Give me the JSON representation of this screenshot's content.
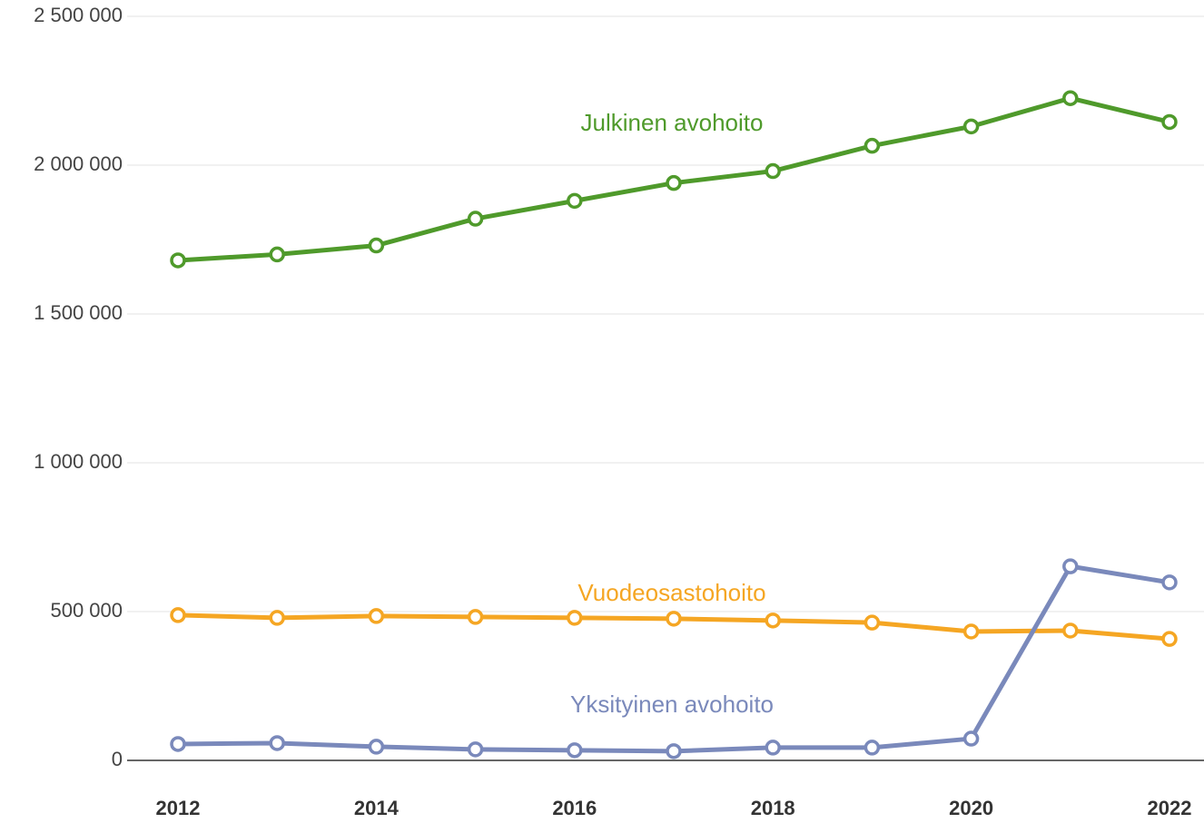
{
  "chart_data": {
    "type": "line",
    "x": [
      2012,
      2013,
      2014,
      2015,
      2016,
      2017,
      2018,
      2019,
      2020,
      2021,
      2022
    ],
    "xlim": [
      2012,
      2022
    ],
    "xticks": [
      2012,
      2014,
      2016,
      2018,
      2020,
      2022
    ],
    "ylim": [
      0,
      2500000
    ],
    "yticks": [
      0,
      {
        "value": 500000,
        "label": "500 000"
      },
      {
        "value": 1000000,
        "label": "1 000 000"
      },
      {
        "value": 1500000,
        "label": "1 500 000"
      },
      {
        "value": 2000000,
        "label": "2 000 000"
      },
      {
        "value": 2500000,
        "label": "2 500 000"
      }
    ],
    "grid": true,
    "series": [
      {
        "name": "Julkinen avohoito",
        "color": "#4f9a2b",
        "values": [
          1680000,
          1700000,
          1730000,
          1820000,
          1880000,
          1940000,
          1980000,
          2065000,
          2130000,
          2225000,
          2145000
        ]
      },
      {
        "name": "Vuodeosastohoito",
        "color": "#f5a623",
        "values": [
          488000,
          479000,
          485000,
          482000,
          479000,
          476000,
          470000,
          463000,
          433000,
          436000,
          408000
        ]
      },
      {
        "name": "Yksityinen avohoito",
        "color": "#7a89bb",
        "values": [
          55000,
          58000,
          46000,
          37000,
          34000,
          31000,
          43000,
          43000,
          73000,
          652000,
          598000
        ]
      }
    ]
  }
}
